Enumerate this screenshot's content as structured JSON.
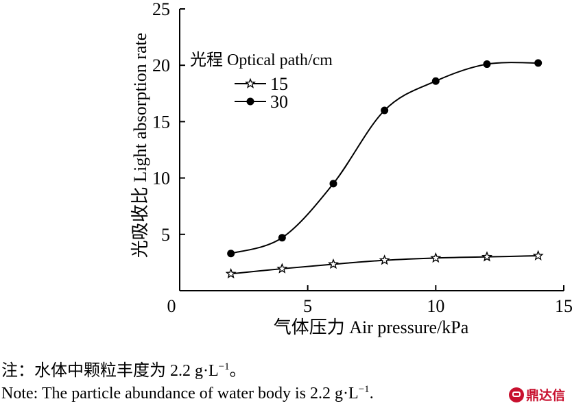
{
  "chart_data": {
    "type": "line",
    "xlabel": "气体压力 Air pressure/kPa",
    "ylabel": "光吸收比 Light absorption rate",
    "xlim": [
      0,
      15
    ],
    "ylim": [
      0,
      25
    ],
    "xticks": [
      0,
      5,
      10,
      15
    ],
    "yticks": [
      5,
      10,
      15,
      20,
      25
    ],
    "grid": false,
    "legend_position": "top-left",
    "legend_title": "光程 Optical path/cm",
    "series": [
      {
        "name": "15",
        "marker": "star-open",
        "x": [
          2,
          4,
          6,
          8,
          10,
          12,
          14
        ],
        "y": [
          1.5,
          1.95,
          2.35,
          2.7,
          2.9,
          3.0,
          3.1
        ]
      },
      {
        "name": "30",
        "marker": "circle-filled",
        "x": [
          2,
          4,
          6,
          8,
          10,
          12,
          14
        ],
        "y": [
          3.3,
          4.7,
          9.5,
          16.0,
          18.6,
          20.1,
          20.2
        ]
      }
    ]
  },
  "notes": {
    "cn_prefix": "注：水体中颗粒丰度为 2.2 g·L",
    "cn_sup": "−1",
    "cn_suffix": "。",
    "en_prefix": "Note: The particle abundance of water body is 2.2 g·L",
    "en_sup": "−1",
    "en_suffix": "."
  },
  "watermark": {
    "text": "鼎达信",
    "color": "#c8102e"
  }
}
